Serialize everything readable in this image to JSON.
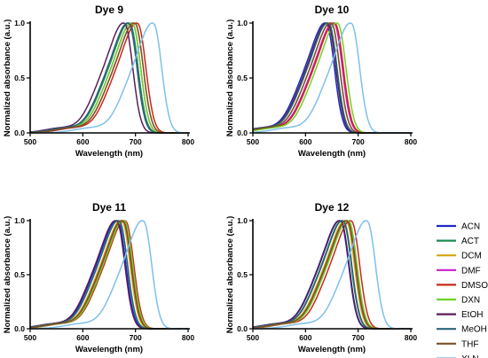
{
  "chart_data": {
    "type": "line",
    "panels": [
      {
        "title": "Dye 9",
        "peaks": [
          690,
          690,
          700,
          695,
          705,
          695,
          680,
          688,
          700,
          735
        ]
      },
      {
        "title": "Dye 10",
        "peaks": [
          640,
          643,
          650,
          655,
          657,
          662,
          643,
          645,
          650,
          688
        ]
      },
      {
        "title": "Dye 11",
        "peaks": [
          667,
          670,
          675,
          678,
          682,
          680,
          665,
          670,
          677,
          716
        ]
      },
      {
        "title": "Dye 12",
        "peaks": [
          667,
          672,
          678,
          682,
          688,
          683,
          668,
          673,
          680,
          718
        ]
      }
    ],
    "xlabel": "Wavelength (nm)",
    "ylabel": "Normalized absorbance (a.u.)",
    "xlim": [
      500,
      800
    ],
    "ylim": [
      0,
      1.0
    ],
    "xticks": [
      "500",
      "600",
      "700",
      "800"
    ],
    "yticks": [
      "0.0",
      "0.5",
      "1.0"
    ],
    "series": [
      {
        "name": "ACN",
        "color": "#1f28c9"
      },
      {
        "name": "ACT",
        "color": "#1e8a50"
      },
      {
        "name": "DCM",
        "color": "#d4a50e"
      },
      {
        "name": "DMF",
        "color": "#c81ec8"
      },
      {
        "name": "DMSO",
        "color": "#c8281e"
      },
      {
        "name": "DXN",
        "color": "#6ed225"
      },
      {
        "name": "EtOH",
        "color": "#5a1e5a"
      },
      {
        "name": "MeOH",
        "color": "#2a6478"
      },
      {
        "name": "THF",
        "color": "#7a5028"
      },
      {
        "name": "XLN",
        "color": "#7ec0ea"
      }
    ],
    "legend_position": "right"
  }
}
